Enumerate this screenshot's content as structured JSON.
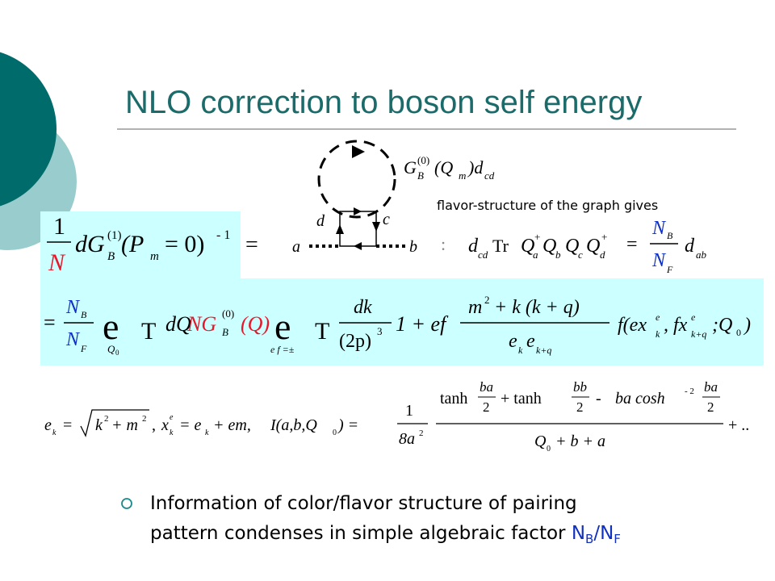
{
  "title": "NLO correction to boson self energy",
  "diagram": {
    "labels": [
      "d",
      "c",
      "a",
      "b"
    ],
    "propagator": [
      "G",
      "(0)",
      "B",
      "(Q",
      "m",
      ")d",
      "cd"
    ]
  },
  "flavor_note": "flavor-structure of the graph gives",
  "equation1": [
    "1",
    "N",
    "dG",
    "(1)",
    "B",
    "(P",
    "m",
    "=   0)",
    "- 1",
    "="
  ],
  "flavor_factor": [
    ":",
    "d",
    "cd",
    "Tr",
    "Q",
    "a",
    "+",
    "Q",
    "b",
    "Q",
    "c",
    "Q",
    "d",
    "+",
    "=",
    "N",
    "B",
    "N",
    "F",
    "d",
    "ab"
  ],
  "equation2": [
    "=",
    "N",
    "B",
    "N",
    "F",
    "e",
    "Q",
    "0",
    "T",
    "dQ",
    "NG",
    "(0)",
    "B",
    "(Q)",
    "e",
    "e f =±",
    "T",
    "dk",
    "(2p)",
    "3",
    "1 + ef",
    "m",
    "2",
    "+ k (k + q)",
    "e",
    "k",
    "e",
    "k+q",
    "f(ex",
    "e",
    "k",
    ", fx",
    "e",
    "k+q",
    ";Q",
    "0",
    ")"
  ],
  "equation3": [
    "e",
    "k",
    "=",
    "k",
    "2",
    "+ m",
    "2",
    ",",
    "x",
    "e",
    "k",
    "= e",
    "k",
    "+ em,",
    "I(a,b,Q",
    "0",
    ") =",
    "1",
    "8a",
    "2",
    "tanh",
    "ba",
    "2",
    "+ tanh",
    "bb",
    "2",
    "-",
    "ba cosh",
    "- 2",
    "ba",
    "2",
    "Q",
    "0",
    "+ b + a",
    "+ .."
  ],
  "bullet": {
    "lines": [
      "Information of color/flavor structure of pairing",
      "pattern condenses in simple algebraic factor"
    ],
    "factor": [
      "N",
      "B",
      "/",
      "N",
      "F"
    ]
  }
}
